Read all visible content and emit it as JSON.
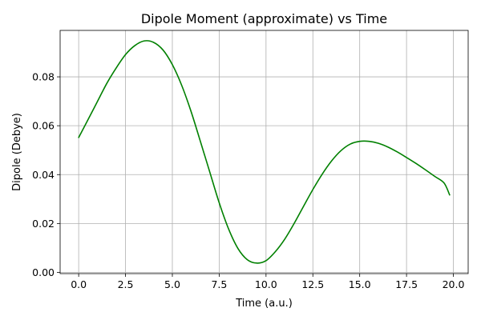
{
  "chart_data": {
    "type": "line",
    "title": "Dipole Moment (approximate) vs Time",
    "xlabel": "Time (a.u.)",
    "ylabel": "Dipole (Debye)",
    "xlim": [
      -0.99,
      20.79
    ],
    "ylim": [
      -0.0005,
      0.099
    ],
    "xticks": [
      "0.0",
      "2.5",
      "5.0",
      "7.5",
      "10.0",
      "12.5",
      "15.0",
      "17.5",
      "20.0"
    ],
    "yticks": [
      "0.00",
      "0.02",
      "0.04",
      "0.06",
      "0.08"
    ],
    "grid": true,
    "series": [
      {
        "color": "#008000",
        "x": [
          0,
          0.5,
          1,
          1.5,
          2,
          2.5,
          3,
          3.5,
          4,
          4.5,
          5,
          5.5,
          6,
          6.5,
          7,
          7.5,
          8,
          8.5,
          9,
          9.5,
          10,
          10.5,
          11,
          11.5,
          12,
          12.5,
          13,
          13.5,
          14,
          14.5,
          15,
          15.5,
          16,
          16.5,
          17,
          17.5,
          18,
          18.5,
          19,
          19.5,
          19.8
        ],
        "y": [
          0.0552,
          0.0625,
          0.0699,
          0.0773,
          0.0836,
          0.0891,
          0.0928,
          0.0947,
          0.0941,
          0.091,
          0.085,
          0.0765,
          0.0658,
          0.0535,
          0.041,
          0.0285,
          0.0178,
          0.0098,
          0.0052,
          0.0038,
          0.0048,
          0.0085,
          0.0136,
          0.02,
          0.027,
          0.0339,
          0.0402,
          0.0456,
          0.0498,
          0.0525,
          0.0536,
          0.0536,
          0.0528,
          0.0513,
          0.0493,
          0.047,
          0.0446,
          0.042,
          0.0393,
          0.0366,
          0.0317
        ]
      }
    ]
  }
}
